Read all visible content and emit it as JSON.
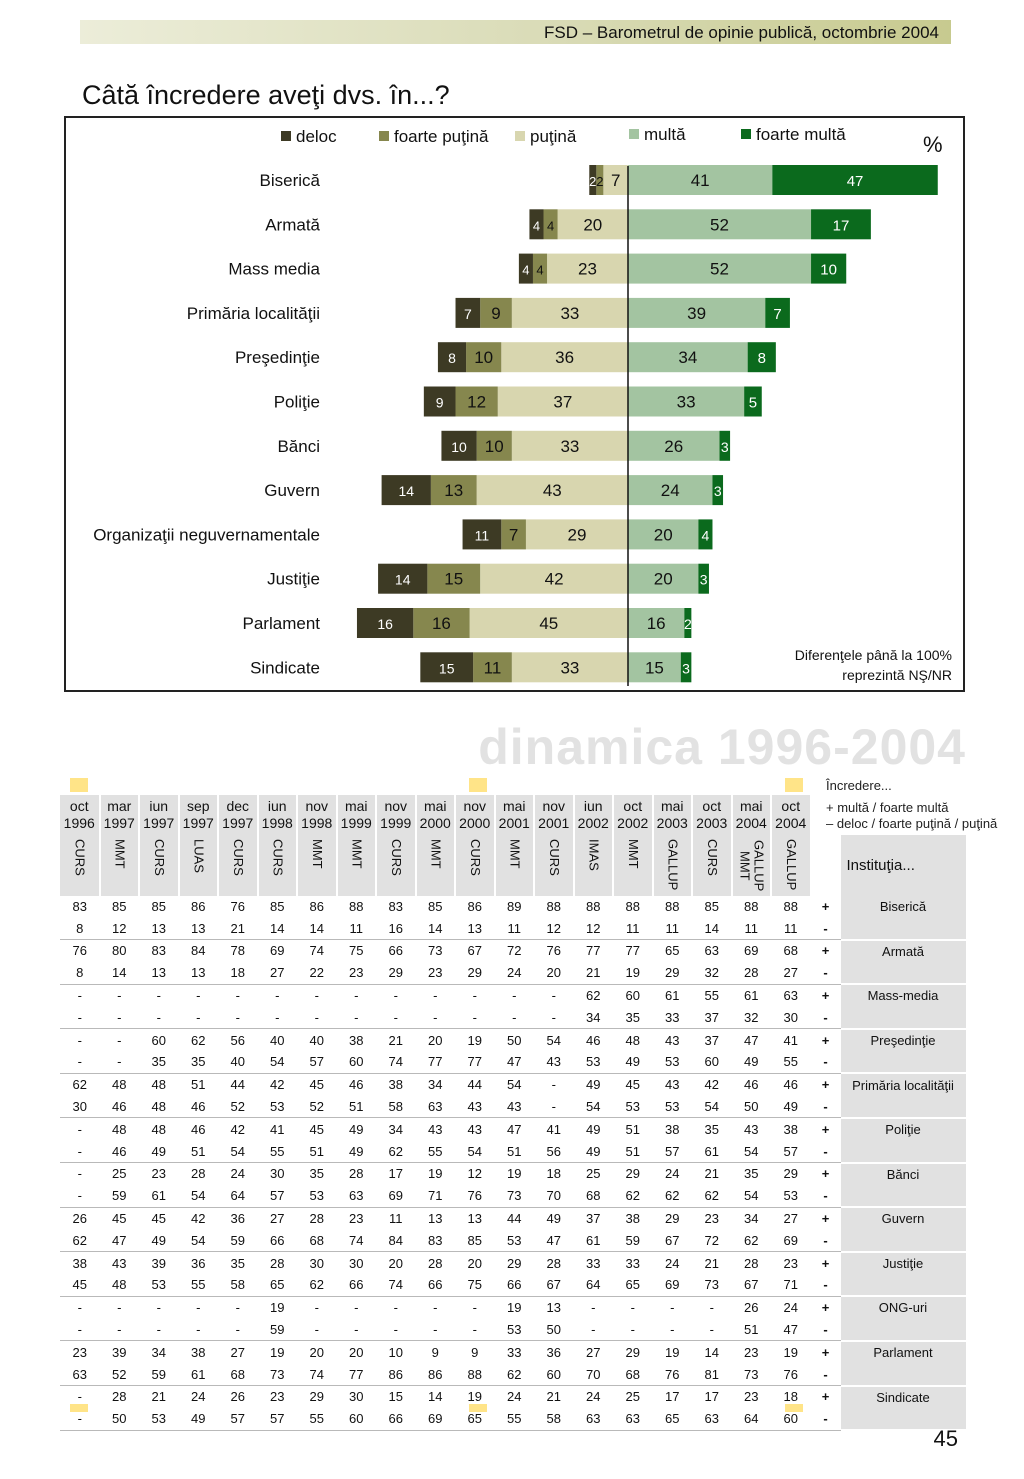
{
  "header": {
    "text": "FSD  –  Barometrul de opinie publică, octombrie 2004"
  },
  "page_title": "Câtă încredere aveţi dvs. în...?",
  "colors": {
    "deloc": "#3d3a24",
    "foarte_putina": "#86874e",
    "putina": "#d8d6af",
    "multa": "#a3c4a1",
    "foarte_multa": "#0b6a1d",
    "marker": "#ffe488",
    "panel_gray": "#e1e1e1"
  },
  "chart_data": {
    "type": "bar",
    "subtype": "diverging-stacked-horizontal",
    "title": "Câtă încredere aveţi dvs. în...?",
    "unit": "%",
    "legend_position": "top",
    "categories": [
      "Biserică",
      "Armată",
      "Mass media",
      "Primăria localităţii",
      "Preşedinţie",
      "Poliţie",
      "Bănci",
      "Guvern",
      "Organizaţii neguvernamentale",
      "Justiţie",
      "Parlament",
      "Sindicate"
    ],
    "series": [
      {
        "name": "deloc",
        "side": "negative",
        "values": [
          2,
          4,
          4,
          7,
          8,
          9,
          10,
          14,
          11,
          14,
          16,
          15
        ]
      },
      {
        "name": "foarte puţină",
        "side": "negative",
        "values": [
          2,
          4,
          4,
          9,
          10,
          12,
          10,
          13,
          7,
          15,
          16,
          11
        ]
      },
      {
        "name": "puţină",
        "side": "negative",
        "values": [
          7,
          20,
          23,
          33,
          36,
          37,
          33,
          43,
          29,
          42,
          45,
          33
        ]
      },
      {
        "name": "multă",
        "side": "positive",
        "values": [
          41,
          52,
          52,
          39,
          34,
          33,
          26,
          24,
          20,
          20,
          16,
          15
        ]
      },
      {
        "name": "foarte multă",
        "side": "positive",
        "values": [
          47,
          17,
          10,
          7,
          8,
          5,
          3,
          3,
          4,
          3,
          2,
          3
        ]
      }
    ],
    "note_line1": "Diferenţele până la 100%",
    "note_line2": "reprezintă NŞ/NR"
  },
  "dinamica": {
    "title": "dinamica 1996-2004",
    "legend": {
      "title": "Încredere...",
      "plus": "+  multă / foarte multă",
      "minus": "–  deloc / foarte puţină / puţină"
    },
    "institution_header": "Instituţia...",
    "columns": [
      {
        "month": "oct",
        "year": "1996",
        "source": "CURS"
      },
      {
        "month": "mar",
        "year": "1997",
        "source": "MMT"
      },
      {
        "month": "iun",
        "year": "1997",
        "source": "CURS"
      },
      {
        "month": "sep",
        "year": "1997",
        "source": "LUAS"
      },
      {
        "month": "dec",
        "year": "1997",
        "source": "CURS"
      },
      {
        "month": "iun",
        "year": "1998",
        "source": "CURS"
      },
      {
        "month": "nov",
        "year": "1998",
        "source": "MMT"
      },
      {
        "month": "mai",
        "year": "1999",
        "source": "MMT"
      },
      {
        "month": "nov",
        "year": "1999",
        "source": "CURS"
      },
      {
        "month": "mai",
        "year": "2000",
        "source": "MMT"
      },
      {
        "month": "nov",
        "year": "2000",
        "source": "CURS"
      },
      {
        "month": "mai",
        "year": "2001",
        "source": "MMT"
      },
      {
        "month": "nov",
        "year": "2001",
        "source": "CURS"
      },
      {
        "month": "iun",
        "year": "2002",
        "source": "IMAS"
      },
      {
        "month": "oct",
        "year": "2002",
        "source": "MMT"
      },
      {
        "month": "mai",
        "year": "2003",
        "source": "GALLUP"
      },
      {
        "month": "oct",
        "year": "2003",
        "source": "CURS"
      },
      {
        "month": "mai",
        "year": "2004",
        "source": "GALLUP MMT"
      },
      {
        "month": "oct",
        "year": "2004",
        "source": "GALLUP"
      }
    ],
    "rows": [
      {
        "institution": "Biserică",
        "sign": "+",
        "values": [
          "83",
          "85",
          "85",
          "86",
          "76",
          "85",
          "86",
          "88",
          "83",
          "85",
          "86",
          "89",
          "88",
          "88",
          "88",
          "88",
          "85",
          "88",
          "88"
        ]
      },
      {
        "institution": "",
        "sign": "-",
        "values": [
          "8",
          "12",
          "13",
          "13",
          "21",
          "14",
          "14",
          "11",
          "16",
          "14",
          "13",
          "11",
          "12",
          "12",
          "11",
          "11",
          "14",
          "11",
          "11"
        ]
      },
      {
        "institution": "Armată",
        "sign": "+",
        "values": [
          "76",
          "80",
          "83",
          "84",
          "78",
          "69",
          "74",
          "75",
          "66",
          "73",
          "67",
          "72",
          "76",
          "77",
          "77",
          "65",
          "63",
          "69",
          "68"
        ]
      },
      {
        "institution": "",
        "sign": "-",
        "values": [
          "8",
          "14",
          "13",
          "13",
          "18",
          "27",
          "22",
          "23",
          "29",
          "23",
          "29",
          "24",
          "20",
          "21",
          "19",
          "29",
          "32",
          "28",
          "27"
        ]
      },
      {
        "institution": "Mass-media",
        "sign": "+",
        "values": [
          "-",
          "-",
          "-",
          "-",
          "-",
          "-",
          "-",
          "-",
          "-",
          "-",
          "-",
          "-",
          "-",
          "62",
          "60",
          "61",
          "55",
          "61",
          "63"
        ]
      },
      {
        "institution": "",
        "sign": "-",
        "values": [
          "-",
          "-",
          "-",
          "-",
          "-",
          "-",
          "-",
          "-",
          "-",
          "-",
          "-",
          "-",
          "-",
          "34",
          "35",
          "33",
          "37",
          "32",
          "30"
        ]
      },
      {
        "institution": "Preşedinţie",
        "sign": "+",
        "values": [
          "-",
          "-",
          "60",
          "62",
          "56",
          "40",
          "40",
          "38",
          "21",
          "20",
          "19",
          "50",
          "54",
          "46",
          "48",
          "43",
          "37",
          "47",
          "41"
        ]
      },
      {
        "institution": "",
        "sign": "-",
        "values": [
          "-",
          "-",
          "35",
          "35",
          "40",
          "54",
          "57",
          "60",
          "74",
          "77",
          "77",
          "47",
          "43",
          "53",
          "49",
          "53",
          "60",
          "49",
          "55"
        ]
      },
      {
        "institution": "Primăria localităţii",
        "sign": "+",
        "values": [
          "62",
          "48",
          "48",
          "51",
          "44",
          "42",
          "45",
          "46",
          "38",
          "34",
          "44",
          "54",
          "-",
          "49",
          "45",
          "43",
          "42",
          "46",
          "46"
        ]
      },
      {
        "institution": "",
        "sign": "-",
        "values": [
          "30",
          "46",
          "48",
          "46",
          "52",
          "53",
          "52",
          "51",
          "58",
          "63",
          "43",
          "43",
          "-",
          "54",
          "53",
          "53",
          "54",
          "50",
          "49"
        ]
      },
      {
        "institution": "Poliţie",
        "sign": "+",
        "values": [
          "-",
          "48",
          "48",
          "46",
          "42",
          "41",
          "45",
          "49",
          "34",
          "43",
          "43",
          "47",
          "41",
          "49",
          "51",
          "38",
          "35",
          "43",
          "38"
        ]
      },
      {
        "institution": "",
        "sign": "-",
        "values": [
          "-",
          "46",
          "49",
          "51",
          "54",
          "55",
          "51",
          "49",
          "62",
          "55",
          "54",
          "51",
          "56",
          "49",
          "51",
          "57",
          "61",
          "54",
          "57"
        ]
      },
      {
        "institution": "Bănci",
        "sign": "+",
        "values": [
          "-",
          "25",
          "23",
          "28",
          "24",
          "30",
          "35",
          "28",
          "17",
          "19",
          "12",
          "19",
          "18",
          "25",
          "29",
          "24",
          "21",
          "35",
          "29"
        ]
      },
      {
        "institution": "",
        "sign": "-",
        "values": [
          "-",
          "59",
          "61",
          "54",
          "64",
          "57",
          "53",
          "63",
          "69",
          "71",
          "76",
          "73",
          "70",
          "68",
          "62",
          "62",
          "62",
          "54",
          "53"
        ]
      },
      {
        "institution": "Guvern",
        "sign": "+",
        "values": [
          "26",
          "45",
          "45",
          "42",
          "36",
          "27",
          "28",
          "23",
          "11",
          "13",
          "13",
          "44",
          "49",
          "37",
          "38",
          "29",
          "23",
          "34",
          "27"
        ]
      },
      {
        "institution": "",
        "sign": "-",
        "values": [
          "62",
          "47",
          "49",
          "54",
          "59",
          "66",
          "68",
          "74",
          "84",
          "83",
          "85",
          "53",
          "47",
          "61",
          "59",
          "67",
          "72",
          "62",
          "69"
        ]
      },
      {
        "institution": "Justiţie",
        "sign": "+",
        "values": [
          "38",
          "43",
          "39",
          "36",
          "35",
          "28",
          "30",
          "30",
          "20",
          "28",
          "20",
          "29",
          "28",
          "33",
          "33",
          "24",
          "21",
          "28",
          "23"
        ]
      },
      {
        "institution": "",
        "sign": "-",
        "values": [
          "45",
          "48",
          "53",
          "55",
          "58",
          "65",
          "62",
          "66",
          "74",
          "66",
          "75",
          "66",
          "67",
          "64",
          "65",
          "69",
          "73",
          "67",
          "71"
        ]
      },
      {
        "institution": "ONG-uri",
        "sign": "+",
        "values": [
          "-",
          "-",
          "-",
          "-",
          "-",
          "19",
          "-",
          "-",
          "-",
          "-",
          "-",
          "19",
          "13",
          "-",
          "-",
          "-",
          "-",
          "26",
          "24"
        ]
      },
      {
        "institution": "",
        "sign": "-",
        "values": [
          "-",
          "-",
          "-",
          "-",
          "-",
          "59",
          "-",
          "-",
          "-",
          "-",
          "-",
          "53",
          "50",
          "-",
          "-",
          "-",
          "-",
          "51",
          "47"
        ]
      },
      {
        "institution": "Parlament",
        "sign": "+",
        "values": [
          "23",
          "39",
          "34",
          "38",
          "27",
          "19",
          "20",
          "20",
          "10",
          "9",
          "9",
          "33",
          "36",
          "27",
          "29",
          "19",
          "14",
          "23",
          "19"
        ]
      },
      {
        "institution": "",
        "sign": "-",
        "values": [
          "63",
          "52",
          "59",
          "61",
          "68",
          "73",
          "74",
          "77",
          "86",
          "86",
          "88",
          "62",
          "60",
          "70",
          "68",
          "76",
          "81",
          "73",
          "76"
        ]
      },
      {
        "institution": "Sindicate",
        "sign": "+",
        "values": [
          "-",
          "28",
          "21",
          "24",
          "26",
          "23",
          "29",
          "30",
          "15",
          "14",
          "19",
          "24",
          "21",
          "24",
          "25",
          "17",
          "17",
          "23",
          "18"
        ]
      },
      {
        "institution": "",
        "sign": "-",
        "values": [
          "-",
          "50",
          "53",
          "49",
          "57",
          "57",
          "55",
          "60",
          "66",
          "69",
          "65",
          "55",
          "58",
          "63",
          "63",
          "65",
          "63",
          "64",
          "60"
        ]
      }
    ]
  },
  "page_number": "45"
}
